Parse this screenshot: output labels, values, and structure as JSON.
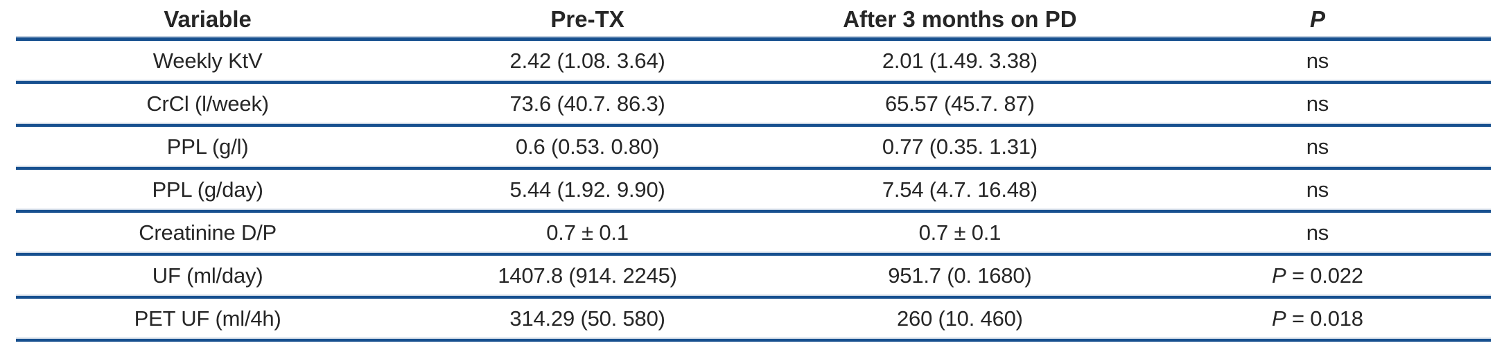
{
  "table": {
    "columns": [
      {
        "label": "Variable"
      },
      {
        "label": "Pre-TX"
      },
      {
        "label": "After 3 months on PD"
      },
      {
        "label": "P"
      }
    ],
    "rows": [
      {
        "variable": "Weekly KtV",
        "pre_tx": "2.42 (1.08. 3.64)",
        "after_pd": "2.01 (1.49. 3.38)",
        "p_italic": "",
        "p_text": "ns"
      },
      {
        "variable": "CrCl (l/week)",
        "pre_tx": "73.6 (40.7. 86.3)",
        "after_pd": "65.57 (45.7. 87)",
        "p_italic": "",
        "p_text": "ns"
      },
      {
        "variable": "PPL (g/l)",
        "pre_tx": "0.6 (0.53. 0.80)",
        "after_pd": "0.77 (0.35. 1.31)",
        "p_italic": "",
        "p_text": "ns"
      },
      {
        "variable": "PPL (g/day)",
        "pre_tx": "5.44 (1.92. 9.90)",
        "after_pd": "7.54 (4.7. 16.48)",
        "p_italic": "",
        "p_text": "ns"
      },
      {
        "variable": "Creatinine D/P",
        "pre_tx": "0.7 ± 0.1",
        "after_pd": "0.7 ± 0.1",
        "p_italic": "",
        "p_text": "ns"
      },
      {
        "variable": "UF (ml/day)",
        "pre_tx": "1407.8 (914. 2245)",
        "after_pd": "951.7 (0. 1680)",
        "p_italic": "P",
        "p_text": " = 0.022"
      },
      {
        "variable": "PET UF (ml/4h)",
        "pre_tx": "314.29 (50. 580)",
        "after_pd": "260 (10. 460)",
        "p_italic": "P",
        "p_text": " = 0.018"
      }
    ]
  },
  "colors": {
    "rule_navy": "#17508f",
    "rule_light_edge": "#c9d5e3",
    "text": "#262626"
  }
}
